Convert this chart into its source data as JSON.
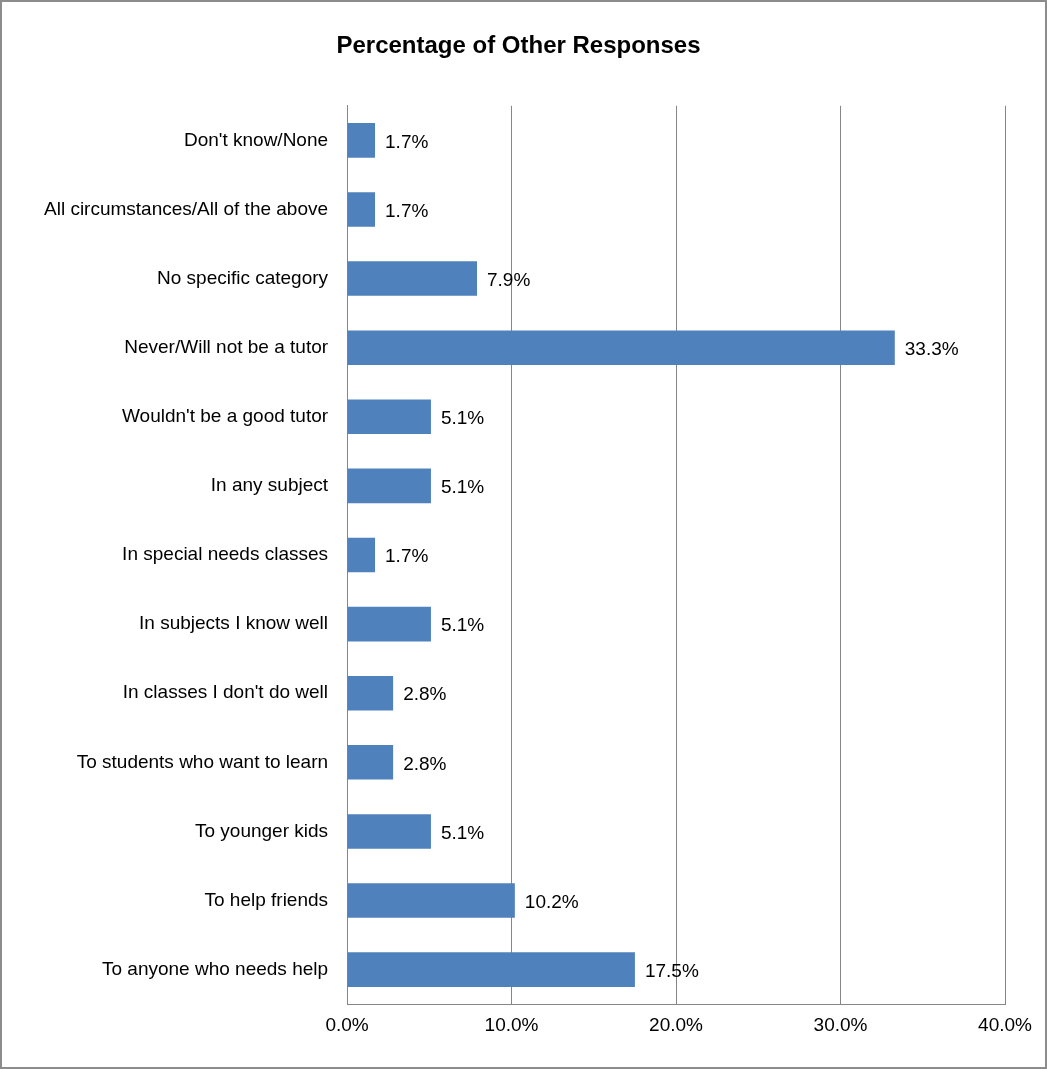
{
  "chart_data": {
    "type": "bar",
    "orientation": "horizontal",
    "title": "Percentage of Other Responses",
    "categories": [
      "Don't know/None",
      "All circumstances/All of the above",
      "No specific category",
      "Never/Will not be a tutor",
      "Wouldn't be a good tutor",
      "In any subject",
      "In special needs classes",
      "In subjects I know well",
      "In classes I don't do well",
      "To students who want to learn",
      "To younger kids",
      "To help friends",
      "To anyone who needs help"
    ],
    "values": [
      1.7,
      1.7,
      7.9,
      33.3,
      5.1,
      5.1,
      1.7,
      5.1,
      2.8,
      2.8,
      5.1,
      10.2,
      17.5
    ],
    "value_labels": [
      "1.7%",
      "1.7%",
      "7.9%",
      "33.3%",
      "5.1%",
      "5.1%",
      "1.7%",
      "5.1%",
      "2.8%",
      "2.8%",
      "5.1%",
      "10.2%",
      "17.5%"
    ],
    "color": "#4f81bd",
    "xlim": [
      0,
      40
    ],
    "xticks": [
      {
        "value": 0,
        "label": "0.0%"
      },
      {
        "value": 10,
        "label": "10.0%"
      },
      {
        "value": 20,
        "label": "20.0%"
      },
      {
        "value": 30,
        "label": "30.0%"
      },
      {
        "value": 40,
        "label": "40.0%"
      }
    ],
    "grid": "x",
    "legend": false
  }
}
